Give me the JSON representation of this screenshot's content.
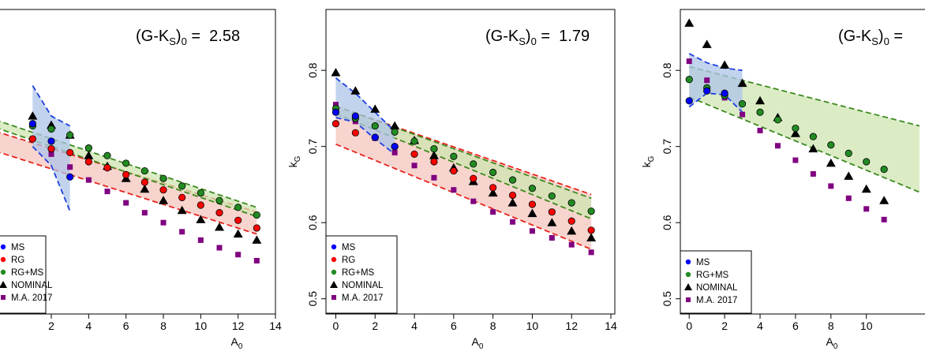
{
  "colors": {
    "MS": "#0000ff",
    "RG": "#ff0000",
    "RG+MS": "#228b22",
    "NOMINAL": "#000000",
    "M.A. 2017": "#800080",
    "band_MS": "#aec4e8",
    "band_RG": "#f6c6be",
    "band_RGMS": "#cfe6b2",
    "line_MS": "#1f3fe0",
    "line_RG": "#e8231d",
    "line_RGMS": "#3c8a1e"
  },
  "chart_data": [
    {
      "type": "scatter",
      "id": "left",
      "annotation_label": "(G-K",
      "annotation_sub1": "S",
      "annotation_close": ")",
      "annotation_sub2": "0",
      "annotation_eq": " =  ",
      "annotation_value": "2.58",
      "xlabel": "A",
      "xlabel_sub": "0",
      "ylabel": "",
      "xlim": [
        -1.0,
        14.0
      ],
      "ylim": [
        0.46,
        0.86
      ],
      "xticks": [
        2,
        4,
        6,
        8,
        10,
        12,
        14
      ],
      "yticks": [],
      "legend": [
        "MS",
        "RG",
        "RG+MS",
        "NOMINAL",
        "M.A. 2017"
      ],
      "legend_visible": [
        "MS",
        "RG",
        "RG+MS",
        "NOMINAL",
        "M.A. 2017"
      ],
      "legend_display": [
        "MS",
        "RG",
        "RG+MS",
        "NOMINAL",
        "M.A. 2017"
      ],
      "legend_text_shown": [
        "MS",
        "RG",
        "RG+MS",
        "NOMINAL",
        "M.A. 2017"
      ],
      "series": [
        {
          "name": "MS",
          "x": [
            1,
            2,
            3
          ],
          "y": [
            0.71,
            0.687,
            0.64
          ]
        },
        {
          "name": "RG",
          "x": [
            1,
            2,
            3,
            4,
            5,
            6,
            7,
            8,
            9,
            10,
            11,
            12,
            13
          ],
          "y": [
            0.69,
            0.677,
            0.672,
            0.66,
            0.652,
            0.643,
            0.633,
            0.623,
            0.613,
            0.603,
            0.593,
            0.583,
            0.573
          ]
        },
        {
          "name": "RG+MS",
          "x": [
            1,
            2,
            3,
            4,
            5,
            6,
            7,
            8,
            9,
            10,
            11,
            12,
            13
          ],
          "y": [
            0.707,
            0.703,
            0.695,
            0.678,
            0.668,
            0.658,
            0.648,
            0.638,
            0.628,
            0.619,
            0.609,
            0.6,
            0.59
          ]
        },
        {
          "name": "NOMINAL",
          "x": [
            1,
            2,
            3,
            4,
            5,
            6,
            7,
            8,
            9,
            10,
            11,
            12,
            13
          ],
          "y": [
            0.72,
            0.708,
            0.695,
            0.668,
            0.654,
            0.638,
            0.624,
            0.609,
            0.596,
            0.584,
            0.574,
            0.565,
            0.557
          ]
        },
        {
          "name": "M.A. 2017",
          "x": [
            1,
            2,
            3,
            4,
            5,
            6,
            7,
            8,
            9,
            10,
            11,
            12,
            13
          ],
          "y": [
            0.69,
            0.67,
            0.653,
            0.636,
            0.621,
            0.606,
            0.593,
            0.58,
            0.568,
            0.557,
            0.547,
            0.538,
            0.53
          ]
        }
      ],
      "bands": [
        {
          "name": "MS",
          "upper": [
            [
              1,
              0.76
            ],
            [
              2,
              0.72
            ],
            [
              3,
              0.707
            ]
          ],
          "lower": [
            [
              1,
              0.68
            ],
            [
              2,
              0.655
            ],
            [
              3,
              0.595
            ]
          ]
        },
        {
          "name": "RG",
          "upper": [
            [
              -1,
              0.7
            ],
            [
              13,
              0.594
            ]
          ],
          "lower": [
            [
              -1,
              0.674
            ],
            [
              13,
              0.565
            ]
          ]
        },
        {
          "name": "RG+MS",
          "upper": [
            [
              -1,
              0.715
            ],
            [
              13,
              0.6
            ]
          ],
          "lower": [
            [
              -1,
              0.705
            ],
            [
              13,
              0.588
            ]
          ]
        }
      ]
    },
    {
      "type": "scatter",
      "id": "middle",
      "annotation_label": "(G-K",
      "annotation_sub1": "S",
      "annotation_close": ")",
      "annotation_sub2": "0",
      "annotation_eq": " =  ",
      "annotation_value": "1.79",
      "xlabel": "A",
      "xlabel_sub": "0",
      "ylabel": "k",
      "ylabel_sub": "G",
      "xlim": [
        -0.5,
        14.2
      ],
      "ylim": [
        0.48,
        0.88
      ],
      "xticks": [
        0,
        2,
        4,
        6,
        8,
        10,
        12,
        14
      ],
      "yticks": [
        0.5,
        0.6,
        0.7,
        0.8
      ],
      "legend": [
        "MS",
        "RG",
        "RG+MS",
        "NOMINAL",
        "M.A. 2017"
      ],
      "series": [
        {
          "name": "MS",
          "x": [
            0,
            1,
            2,
            3
          ],
          "y": [
            0.745,
            0.74,
            0.712,
            0.7
          ]
        },
        {
          "name": "RG",
          "x": [
            0,
            1,
            2,
            3,
            4,
            5,
            6,
            7,
            8,
            9,
            10,
            11,
            12,
            13
          ],
          "y": [
            0.73,
            0.718,
            0.712,
            0.7,
            0.69,
            0.68,
            0.668,
            0.658,
            0.646,
            0.636,
            0.624,
            0.614,
            0.602,
            0.59
          ]
        },
        {
          "name": "RG+MS",
          "x": [
            0,
            1,
            2,
            3,
            4,
            5,
            6,
            7,
            8,
            9,
            10,
            11,
            12,
            13
          ],
          "y": [
            0.75,
            0.737,
            0.727,
            0.719,
            0.707,
            0.697,
            0.687,
            0.677,
            0.666,
            0.656,
            0.645,
            0.635,
            0.626,
            0.615
          ]
        },
        {
          "name": "NOMINAL",
          "x": [
            0,
            1,
            2,
            3,
            4,
            5,
            6,
            7,
            8,
            9,
            10,
            11,
            12,
            13
          ],
          "y": [
            0.797,
            0.773,
            0.749,
            0.727,
            0.708,
            0.688,
            0.672,
            0.654,
            0.639,
            0.626,
            0.612,
            0.6,
            0.589,
            0.58
          ]
        },
        {
          "name": "M.A. 2017",
          "x": [
            0,
            1,
            2,
            3,
            4,
            5,
            6,
            7,
            8,
            9,
            10,
            11,
            12,
            13
          ],
          "y": [
            0.755,
            0.733,
            0.711,
            0.692,
            0.675,
            0.659,
            0.643,
            0.628,
            0.614,
            0.601,
            0.589,
            0.58,
            0.571,
            0.561
          ]
        }
      ],
      "bands": [
        {
          "name": "MS",
          "upper": [
            [
              0,
              0.79
            ],
            [
              1,
              0.77
            ],
            [
              2,
              0.745
            ],
            [
              3,
              0.72
            ]
          ],
          "lower": [
            [
              0,
              0.738
            ],
            [
              1,
              0.732
            ],
            [
              2,
              0.71
            ],
            [
              3,
              0.69
            ]
          ]
        },
        {
          "name": "RG",
          "upper": [
            [
              0,
              0.753
            ],
            [
              13,
              0.637
            ]
          ],
          "lower": [
            [
              0,
              0.703
            ],
            [
              13,
              0.565
            ]
          ]
        },
        {
          "name": "RG+MS",
          "upper": [
            [
              0,
              0.753
            ],
            [
              13,
              0.632
            ]
          ],
          "lower": [
            [
              0,
              0.743
            ],
            [
              13,
              0.605
            ]
          ]
        }
      ]
    },
    {
      "type": "scatter",
      "id": "right",
      "annotation_label": "(G-K",
      "annotation_sub1": "S",
      "annotation_close": ")",
      "annotation_sub2": "0",
      "annotation_eq": " =  ",
      "annotation_value": "",
      "xlabel": "A",
      "xlabel_sub": "0",
      "ylabel": "k",
      "ylabel_sub": "G",
      "xlim": [
        -0.5,
        14.2
      ],
      "ylim": [
        0.48,
        0.88
      ],
      "xticks": [
        0,
        2,
        4,
        6,
        8,
        10
      ],
      "yticks": [
        0.5,
        0.6,
        0.7,
        0.8
      ],
      "legend": [
        "MS",
        "RG+MS",
        "NOMINAL",
        "M.A. 2017"
      ],
      "series": [
        {
          "name": "MS",
          "x": [
            0,
            1,
            2
          ],
          "y": [
            0.76,
            0.773,
            0.77
          ]
        },
        {
          "name": "RG+MS",
          "x": [
            0,
            1,
            2,
            3,
            4,
            5,
            6,
            7,
            8,
            9,
            10,
            11
          ],
          "y": [
            0.788,
            0.777,
            0.767,
            0.756,
            0.745,
            0.735,
            0.724,
            0.713,
            0.702,
            0.691,
            0.68,
            0.67
          ]
        },
        {
          "name": "NOMINAL",
          "x": [
            0,
            1,
            2,
            3,
            4,
            5,
            6,
            7,
            8,
            9,
            10,
            11
          ],
          "y": [
            0.862,
            0.834,
            0.807,
            0.783,
            0.76,
            0.738,
            0.717,
            0.697,
            0.678,
            0.661,
            0.644,
            0.629
          ]
        },
        {
          "name": "M.A. 2017",
          "x": [
            0,
            1,
            2,
            3,
            4,
            5,
            6,
            7,
            8,
            9,
            10,
            11
          ],
          "y": [
            0.812,
            0.787,
            0.764,
            0.742,
            0.721,
            0.701,
            0.682,
            0.664,
            0.648,
            0.632,
            0.618,
            0.604
          ]
        }
      ],
      "bands": [
        {
          "name": "MS",
          "upper": [
            [
              0,
              0.822
            ],
            [
              1,
              0.81
            ],
            [
              2,
              0.803
            ],
            [
              3,
              0.8
            ]
          ],
          "lower": [
            [
              0,
              0.752
            ],
            [
              1,
              0.77
            ],
            [
              2,
              0.768
            ],
            [
              3,
              0.745
            ]
          ]
        },
        {
          "name": "RG+MS",
          "upper": [
            [
              0,
              0.805
            ],
            [
              13,
              0.727
            ]
          ],
          "lower": [
            [
              0,
              0.765
            ],
            [
              13,
              0.64
            ]
          ]
        }
      ]
    }
  ]
}
